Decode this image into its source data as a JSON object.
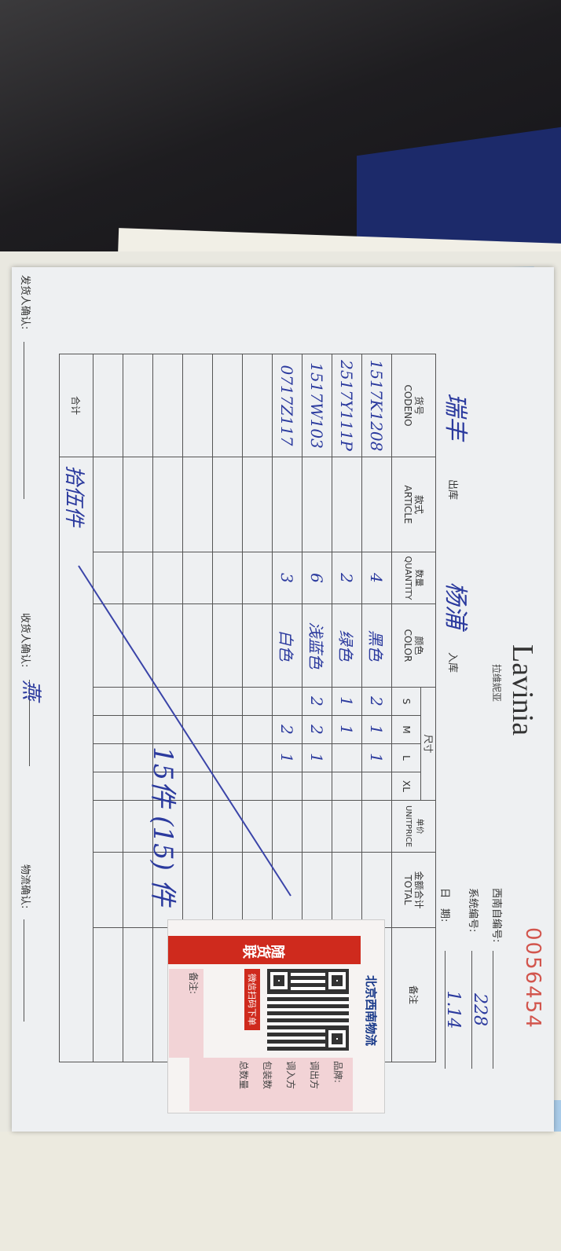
{
  "form": {
    "brand": "Lavinia",
    "brand_sub": "拉维妮亚",
    "serial_number": "0056454",
    "southwest_no_label": "西南自编号:",
    "system_no_label": "系统编号:",
    "system_no_value": "228",
    "date_label": "日　期:",
    "date_value": "1.14",
    "out_store_value": "瑞丰",
    "out_store_label": "出库",
    "in_store_value": "杨浦",
    "in_store_label": "入库",
    "headers": {
      "code": [
        "货号",
        "CODENO"
      ],
      "article": [
        "款式",
        "ARTICLE"
      ],
      "quantity": [
        "数量",
        "QUANTITY"
      ],
      "color": [
        "颜色",
        "COLOR"
      ],
      "size": "尺寸",
      "sizes": [
        "S",
        "M",
        "L",
        "XL"
      ],
      "unitprice": [
        "单价",
        "UNITPRICE"
      ],
      "total": [
        "金额合计",
        "TOTAL"
      ],
      "remark": "备注"
    },
    "rows": [
      {
        "code": "1517K1208",
        "quantity": "4",
        "color": "黑色",
        "s": "2",
        "m": "1",
        "l": "1"
      },
      {
        "code": "2517Y111P",
        "quantity": "2",
        "color": "绿色",
        "s": "1",
        "m": "1",
        "l": ""
      },
      {
        "code": "1517W103",
        "quantity": "6",
        "color": "浅蓝色",
        "s": "2",
        "m": "2",
        "l": "1"
      },
      {
        "code": "0717Z117",
        "quantity": "3",
        "color": "白色",
        "s": "",
        "m": "2",
        "l": "1"
      }
    ],
    "sum_label": "合计",
    "sum_value": "拾伍件",
    "note_handwritten": "15件 (15) 件",
    "sender_label": "发货人确认:",
    "receiver_label": "收货人确认:",
    "receiver_sign": "燕",
    "logistics_label": "物流确认:"
  },
  "card": {
    "company": "北京西南物流",
    "band": "随货联",
    "scan": "微信扫码下单",
    "brand_label": "品牌:",
    "from_label": "调出方",
    "to_label": "调入方",
    "package_label": "包装数",
    "total_label": "总数量",
    "remark_label": "备注:"
  }
}
